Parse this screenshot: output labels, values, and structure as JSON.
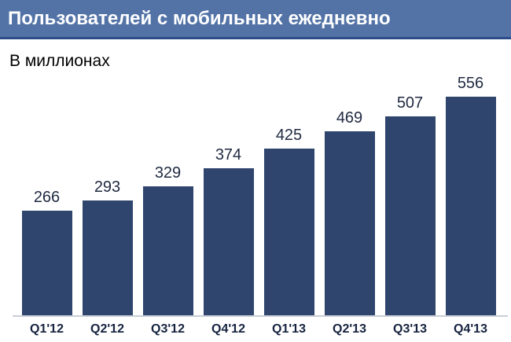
{
  "header": {
    "title": "Пользователей с мобильных ежедневно"
  },
  "subtitle": "В миллионах",
  "colors": {
    "banner_bg": "#5373a7",
    "banner_border": "#2d4c8a",
    "title_color": "#ffffff",
    "bar": "#2f456e",
    "value_label": "#1f2940",
    "tick_label": "#16233f",
    "baseline": "#c9ced6"
  },
  "chart_data": {
    "type": "bar",
    "title": "Пользователей с мобильных ежедневно",
    "subtitle": "В миллионах",
    "unit": "миллионы пользователей",
    "categories": [
      "Q1'12",
      "Q2'12",
      "Q3'12",
      "Q4'12",
      "Q1'13",
      "Q2'13",
      "Q3'13",
      "Q4'13"
    ],
    "values": [
      266,
      293,
      329,
      374,
      425,
      469,
      507,
      556
    ],
    "xlabel": "",
    "ylabel": "",
    "ylim": [
      0,
      600
    ],
    "grid": false,
    "legend": "none",
    "value_labels_shown": true,
    "bar_color": "#2f456e"
  }
}
